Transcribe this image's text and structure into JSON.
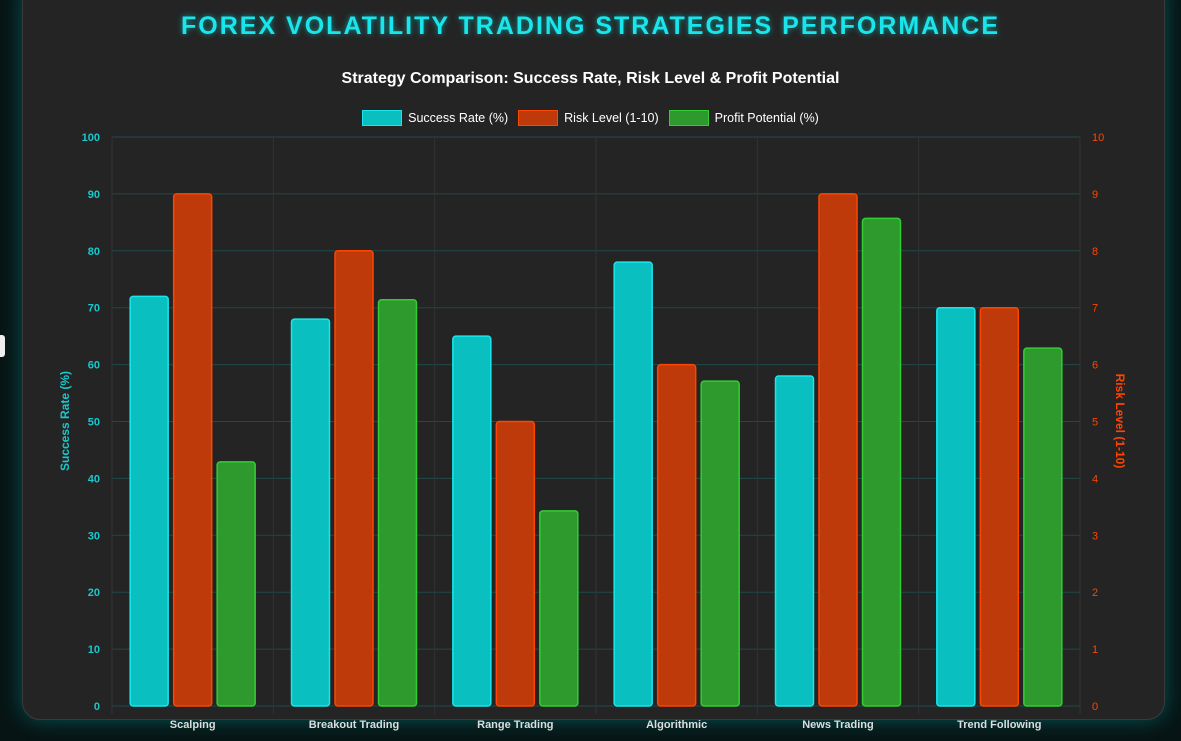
{
  "title": "FOREX VOLATILITY TRADING STRATEGIES PERFORMANCE",
  "chart_data": {
    "type": "bar",
    "title": "Strategy Comparison: Success Rate, Risk Level & Profit Potential",
    "categories": [
      "Scalping",
      "Breakout Trading",
      "Range Trading",
      "Algorithmic",
      "News Trading",
      "Trend Following"
    ],
    "series": [
      {
        "name": "Success Rate (%)",
        "axis": "left",
        "color": "#0abfbf",
        "border": "#19e6ec",
        "values": [
          72,
          68,
          65,
          78,
          58,
          70
        ]
      },
      {
        "name": "Risk Level (1-10)",
        "axis": "right",
        "color": "#bf3a0a",
        "border": "#ff4500",
        "values": [
          9,
          8,
          5,
          6,
          9,
          7
        ]
      },
      {
        "name": "Profit Potential (%)",
        "axis": "left",
        "color": "#2e9a2e",
        "border": "#32cd32",
        "values": [
          42.9,
          71.4,
          34.3,
          57.1,
          85.7,
          62.9
        ]
      }
    ],
    "y_left": {
      "label": "Success Rate (%)",
      "range": [
        0,
        100
      ],
      "ticks": [
        "0",
        "10",
        "20",
        "30",
        "40",
        "50",
        "60",
        "70",
        "80",
        "90",
        "100"
      ],
      "color": "#19c8cc"
    },
    "y_right": {
      "label": "Risk Level (1-10)",
      "range": [
        0,
        10
      ],
      "ticks": [
        "0",
        "1",
        "2",
        "3",
        "4",
        "5",
        "6",
        "7",
        "8",
        "9",
        "10"
      ],
      "color": "#ff4500"
    },
    "grid": true,
    "legend": "top"
  }
}
